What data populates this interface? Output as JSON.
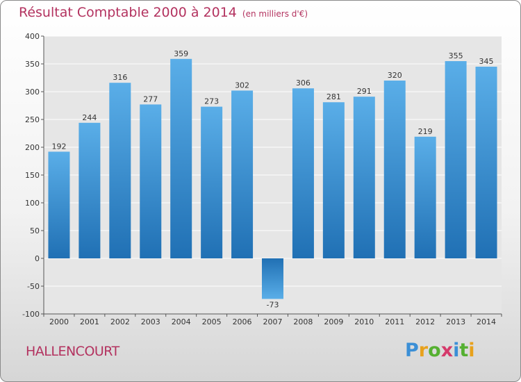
{
  "header": {
    "title": "Résultat Comptable 2000 à 2014",
    "subtitle": "(en milliers d'€)"
  },
  "footer": {
    "commune": "HALLENCOURT",
    "logo_text": "Proxiti"
  },
  "colors": {
    "title": "#b3325f",
    "bar_top": "#5aaee8",
    "bar_bottom": "#2070b4",
    "plot_bg": "#e6e6e6",
    "gridline": "#ffffff"
  },
  "chart_data": {
    "type": "bar",
    "categories": [
      "2000",
      "2001",
      "2002",
      "2003",
      "2004",
      "2005",
      "2006",
      "2007",
      "2008",
      "2009",
      "2010",
      "2011",
      "2012",
      "2013",
      "2014"
    ],
    "values": [
      192,
      244,
      316,
      277,
      359,
      273,
      302,
      -73,
      306,
      281,
      291,
      320,
      219,
      355,
      345
    ],
    "ylim": [
      -100,
      400
    ],
    "yticks": [
      -100,
      -50,
      0,
      50,
      100,
      150,
      200,
      250,
      300,
      350,
      400
    ],
    "grid": true,
    "legend": "none"
  }
}
